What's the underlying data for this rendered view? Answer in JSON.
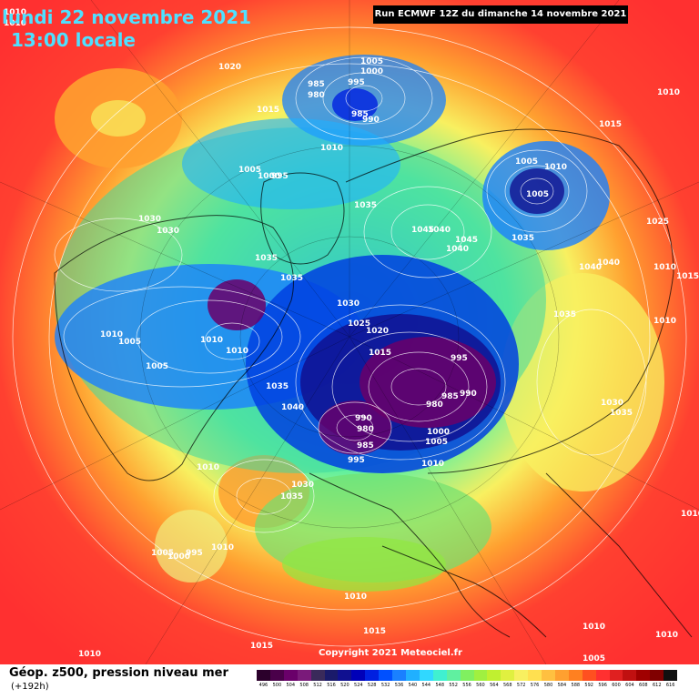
{
  "header": {
    "date": "lundi 22 novembre 2021",
    "time": "13:00 locale",
    "run": "Run ECMWF 12Z du dimanche 14 novembre 2021"
  },
  "copyright": "Copyright 2021 Meteociel.fr",
  "footer": {
    "title": "Géop. z500, pression niveau mer",
    "subtitle": "(+192h)"
  },
  "legend": {
    "ticks": [
      "496",
      "500",
      "504",
      "508",
      "512",
      "516",
      "520",
      "524",
      "528",
      "532",
      "536",
      "540",
      "544",
      "548",
      "552",
      "556",
      "560",
      "564",
      "568",
      "572",
      "576",
      "580",
      "584",
      "588",
      "592",
      "596",
      "600",
      "604",
      "608",
      "612",
      "616"
    ],
    "colors": [
      "#2b002b",
      "#4a004a",
      "#6a006a",
      "#7a1a7a",
      "#3a2a5a",
      "#1a1a6a",
      "#101090",
      "#0000b8",
      "#0020e0",
      "#0050ff",
      "#1a80ff",
      "#20b0ff",
      "#30d8ff",
      "#40f0d0",
      "#60f0a0",
      "#80f060",
      "#a0f040",
      "#c0f030",
      "#e0f040",
      "#f8f060",
      "#ffe050",
      "#ffc040",
      "#ffa030",
      "#ff8020",
      "#ff5020",
      "#ff3030",
      "#e02020",
      "#c01010",
      "#a00000",
      "#800000",
      "#101010"
    ]
  },
  "pressure_labels": [
    {
      "text": "1020"
    },
    {
      "text": "1015"
    },
    {
      "text": "1005"
    },
    {
      "text": "1000"
    },
    {
      "text": "995"
    },
    {
      "text": "985"
    },
    {
      "text": "980"
    },
    {
      "text": "985"
    },
    {
      "text": "990"
    },
    {
      "text": "1010"
    },
    {
      "text": "1005"
    },
    {
      "text": "1000"
    },
    {
      "text": "995"
    },
    {
      "text": "1035"
    },
    {
      "text": "1030"
    },
    {
      "text": "1030"
    },
    {
      "text": "1035"
    },
    {
      "text": "1035"
    },
    {
      "text": "1010"
    },
    {
      "text": "1005"
    },
    {
      "text": "1005"
    },
    {
      "text": "1010"
    },
    {
      "text": "1010"
    },
    {
      "text": "1030"
    },
    {
      "text": "1025"
    },
    {
      "text": "1020"
    },
    {
      "text": "1015"
    },
    {
      "text": "995"
    },
    {
      "text": "980"
    },
    {
      "text": "985"
    },
    {
      "text": "990"
    },
    {
      "text": "990"
    },
    {
      "text": "980"
    },
    {
      "text": "985"
    },
    {
      "text": "1000"
    },
    {
      "text": "1005"
    },
    {
      "text": "995"
    },
    {
      "text": "1010"
    },
    {
      "text": "1040"
    },
    {
      "text": "1035"
    },
    {
      "text": "1045"
    },
    {
      "text": "1040"
    },
    {
      "text": "1045"
    },
    {
      "text": "1040"
    },
    {
      "text": "1035"
    },
    {
      "text": "1005"
    },
    {
      "text": "1010"
    },
    {
      "text": "1005"
    },
    {
      "text": "1015"
    },
    {
      "text": "1010"
    },
    {
      "text": "1025"
    },
    {
      "text": "1040"
    },
    {
      "text": "1040"
    },
    {
      "text": "1035"
    },
    {
      "text": "1010"
    },
    {
      "text": "1015"
    },
    {
      "text": "1010"
    },
    {
      "text": "1030"
    },
    {
      "text": "1035"
    },
    {
      "text": "1010"
    },
    {
      "text": "1030"
    },
    {
      "text": "1035"
    },
    {
      "text": "1010"
    },
    {
      "text": "1005"
    },
    {
      "text": "1000"
    },
    {
      "text": "995"
    },
    {
      "text": "1010"
    },
    {
      "text": "1010"
    },
    {
      "text": "1015"
    },
    {
      "text": "1015"
    },
    {
      "text": "1010"
    },
    {
      "text": "1010"
    },
    {
      "text": "1005"
    },
    {
      "text": "1010"
    },
    {
      "text": "1010"
    },
    {
      "text": "1010"
    }
  ]
}
